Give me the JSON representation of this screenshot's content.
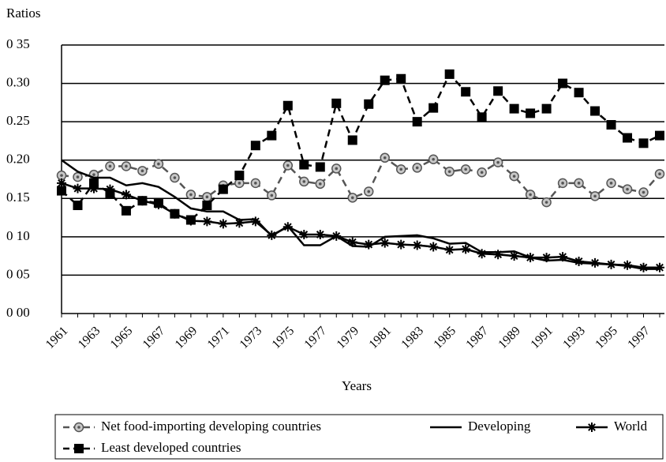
{
  "chart_data": {
    "type": "line",
    "y_label": "Ratios",
    "x_label": "Years",
    "categories": [
      "1961",
      null,
      "1963",
      null,
      "1965",
      null,
      "1967",
      null,
      "1969",
      null,
      "1971",
      null,
      "1973",
      null,
      "1975",
      null,
      "1977",
      null,
      "1979",
      null,
      "1981",
      null,
      "1983",
      null,
      "1985",
      null,
      "1987",
      null,
      "1989",
      null,
      "1991",
      null,
      "1993",
      null,
      "1995",
      null,
      "1997",
      null
    ],
    "ylim": [
      0,
      0.35
    ],
    "yticks": [
      {
        "value": 0,
        "label": "0 00"
      },
      {
        "value": 0.05,
        "label": "0 05"
      },
      {
        "value": 0.1,
        "label": "0 10"
      },
      {
        "value": 0.15,
        "label": "0.15"
      },
      {
        "value": 0.2,
        "label": "0.20"
      },
      {
        "value": 0.25,
        "label": "0.25"
      },
      {
        "value": 0.3,
        "label": "0.30"
      },
      {
        "value": 0.35,
        "label": "0 35"
      }
    ],
    "grid": true,
    "legend": "bottom",
    "series": [
      {
        "name": "Net food-importing developing countries",
        "color": "#555555",
        "dash": true,
        "marker": "circle",
        "values": [
          0.18,
          0.178,
          0.181,
          0.192,
          0.192,
          0.186,
          0.195,
          0.177,
          0.155,
          0.152,
          0.167,
          0.17,
          0.17,
          0.154,
          0.193,
          0.172,
          0.169,
          0.189,
          0.151,
          0.159,
          0.203,
          0.188,
          0.19,
          0.201,
          0.185,
          0.188,
          0.184,
          0.197,
          0.179,
          0.155,
          0.145,
          0.17,
          0.17,
          0.153,
          0.17,
          0.162,
          0.158,
          0.182
        ]
      },
      {
        "name": "Developing",
        "color": "#000000",
        "dash": false,
        "marker": null,
        "values": [
          0.2,
          0.185,
          0.177,
          0.177,
          0.167,
          0.17,
          0.165,
          0.152,
          0.137,
          0.133,
          0.133,
          0.122,
          0.123,
          0.101,
          0.114,
          0.089,
          0.089,
          0.101,
          0.088,
          0.087,
          0.1,
          0.101,
          0.102,
          0.098,
          0.091,
          0.092,
          0.08,
          0.08,
          0.081,
          0.073,
          0.069,
          0.07,
          0.066,
          0.065,
          0.064,
          0.062,
          0.058,
          0.058
        ]
      },
      {
        "name": "World",
        "color": "#000000",
        "dash": false,
        "marker": "star",
        "values": [
          0.17,
          0.163,
          0.163,
          0.162,
          0.155,
          0.147,
          0.142,
          0.13,
          0.121,
          0.12,
          0.117,
          0.118,
          0.12,
          0.102,
          0.113,
          0.103,
          0.103,
          0.101,
          0.093,
          0.09,
          0.092,
          0.09,
          0.089,
          0.087,
          0.083,
          0.084,
          0.078,
          0.077,
          0.075,
          0.073,
          0.073,
          0.074,
          0.068,
          0.066,
          0.064,
          0.063,
          0.06,
          0.06
        ]
      },
      {
        "name": "Least developed countries",
        "color": "#000000",
        "dash": true,
        "marker": "square",
        "values": [
          0.16,
          0.141,
          0.17,
          0.157,
          0.134,
          0.147,
          0.144,
          0.13,
          0.122,
          0.141,
          0.162,
          0.18,
          0.219,
          0.232,
          0.271,
          0.194,
          0.191,
          0.274,
          0.226,
          0.273,
          0.304,
          0.306,
          0.25,
          0.268,
          0.312,
          0.289,
          0.256,
          0.29,
          0.267,
          0.261,
          0.267,
          0.3,
          0.288,
          0.264,
          0.246,
          0.229,
          0.222,
          0.232
        ]
      }
    ]
  }
}
